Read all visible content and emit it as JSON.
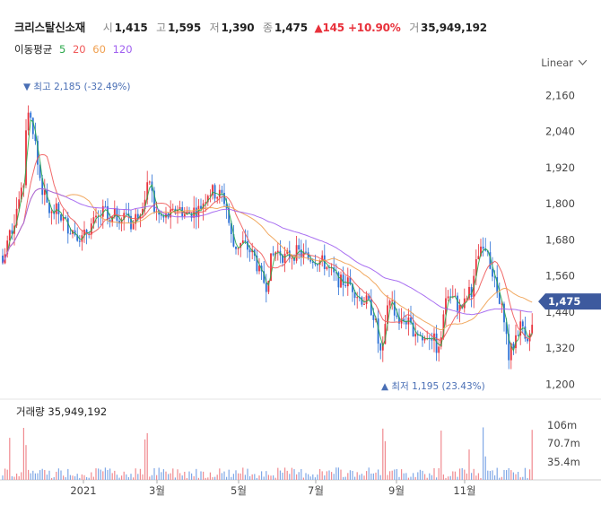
{
  "header": {
    "name": "크리스탈신소재",
    "open_label": "시",
    "open": "1,415",
    "high_label": "고",
    "high": "1,595",
    "low_label": "저",
    "low": "1,390",
    "close_label": "종",
    "close": "1,475",
    "change": "▲145 +10.90%",
    "volume_label": "거",
    "volume": "35,949,192"
  },
  "ma": {
    "label": "이동평균",
    "periods": [
      {
        "p": "5",
        "color": "#2aa84a"
      },
      {
        "p": "20",
        "color": "#f05a5a"
      },
      {
        "p": "60",
        "color": "#f0a050"
      },
      {
        "p": "120",
        "color": "#a060f0"
      }
    ]
  },
  "scale_mode": "Linear",
  "volume_title": "거래량 35,949,192",
  "chart_data": {
    "type": "candlestick",
    "y_axis": {
      "ticks": [
        1200,
        1320,
        1440,
        1560,
        1680,
        1800,
        1920,
        2040,
        2160
      ],
      "range": [
        1165,
        2215
      ]
    },
    "volume_axis": {
      "ticks": [
        "106m",
        "70.7m",
        "35.4m"
      ]
    },
    "x_axis": {
      "ticks": [
        "2021",
        "3월",
        "5월",
        "7월",
        "9월",
        "11월"
      ]
    },
    "current_price": "1,475",
    "max_annotation": "▼ 최고 2,185 (-32.49%)",
    "min_annotation": "▲ 최저 1,195 (23.43%)",
    "anchors": [
      [
        0,
        1590
      ],
      [
        4,
        1640
      ],
      [
        8,
        1700
      ],
      [
        12,
        1720
      ],
      [
        16,
        1780
      ],
      [
        20,
        1820
      ],
      [
        24,
        1840
      ],
      [
        28,
        2140
      ],
      [
        32,
        2080
      ],
      [
        36,
        2040
      ],
      [
        40,
        1930
      ],
      [
        45,
        1850
      ],
      [
        50,
        1800
      ],
      [
        55,
        1760
      ],
      [
        60,
        1780
      ],
      [
        65,
        1760
      ],
      [
        70,
        1740
      ],
      [
        75,
        1720
      ],
      [
        80,
        1710
      ],
      [
        85,
        1700
      ],
      [
        90,
        1680
      ],
      [
        95,
        1710
      ],
      [
        100,
        1730
      ],
      [
        105,
        1740
      ],
      [
        110,
        1760
      ],
      [
        115,
        1780
      ],
      [
        120,
        1720
      ],
      [
        125,
        1760
      ],
      [
        130,
        1760
      ],
      [
        135,
        1750
      ],
      [
        140,
        1780
      ],
      [
        145,
        1720
      ],
      [
        150,
        1760
      ],
      [
        155,
        1790
      ],
      [
        160,
        1830
      ],
      [
        165,
        1880
      ],
      [
        170,
        1780
      ],
      [
        175,
        1760
      ],
      [
        180,
        1750
      ],
      [
        185,
        1760
      ],
      [
        190,
        1760
      ],
      [
        195,
        1790
      ],
      [
        200,
        1780
      ],
      [
        205,
        1760
      ],
      [
        210,
        1770
      ],
      [
        215,
        1780
      ],
      [
        220,
        1780
      ],
      [
        225,
        1810
      ],
      [
        230,
        1840
      ],
      [
        235,
        1840
      ],
      [
        240,
        1830
      ],
      [
        245,
        1830
      ],
      [
        250,
        1800
      ],
      [
        255,
        1700
      ],
      [
        258,
        1660
      ],
      [
        262,
        1660
      ],
      [
        268,
        1670
      ],
      [
        275,
        1650
      ],
      [
        282,
        1620
      ],
      [
        288,
        1560
      ],
      [
        295,
        1530
      ],
      [
        300,
        1610
      ],
      [
        305,
        1640
      ],
      [
        310,
        1640
      ],
      [
        315,
        1620
      ],
      [
        322,
        1630
      ],
      [
        330,
        1640
      ],
      [
        335,
        1630
      ],
      [
        342,
        1620
      ],
      [
        348,
        1620
      ],
      [
        355,
        1610
      ],
      [
        360,
        1600
      ],
      [
        365,
        1580
      ],
      [
        370,
        1560
      ],
      [
        378,
        1540
      ],
      [
        385,
        1540
      ],
      [
        392,
        1520
      ],
      [
        398,
        1490
      ],
      [
        403,
        1480
      ],
      [
        408,
        1470
      ],
      [
        412,
        1450
      ],
      [
        416,
        1420
      ],
      [
        420,
        1330
      ],
      [
        424,
        1280
      ],
      [
        428,
        1440
      ],
      [
        432,
        1500
      ],
      [
        436,
        1460
      ],
      [
        440,
        1430
      ],
      [
        445,
        1400
      ],
      [
        450,
        1420
      ],
      [
        455,
        1390
      ],
      [
        460,
        1380
      ],
      [
        465,
        1370
      ],
      [
        470,
        1340
      ],
      [
        475,
        1370
      ],
      [
        480,
        1360
      ],
      [
        485,
        1320
      ],
      [
        488,
        1300
      ],
      [
        492,
        1440
      ],
      [
        496,
        1500
      ],
      [
        500,
        1490
      ],
      [
        505,
        1480
      ],
      [
        510,
        1450
      ],
      [
        515,
        1460
      ],
      [
        520,
        1500
      ],
      [
        525,
        1520
      ],
      [
        530,
        1620
      ],
      [
        535,
        1640
      ],
      [
        540,
        1660
      ],
      [
        545,
        1600
      ],
      [
        550,
        1530
      ],
      [
        555,
        1460
      ],
      [
        560,
        1430
      ],
      [
        565,
        1290
      ],
      [
        570,
        1330
      ],
      [
        575,
        1380
      ],
      [
        580,
        1400
      ],
      [
        585,
        1360
      ],
      [
        590,
        1360
      ],
      [
        594,
        1475
      ]
    ]
  }
}
